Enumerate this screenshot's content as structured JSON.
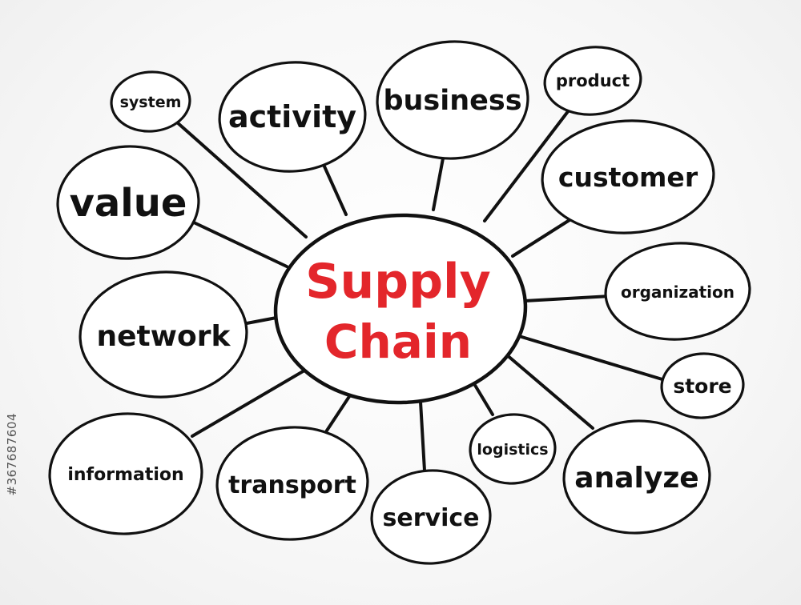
{
  "diagram": {
    "center": {
      "line1": "Supply",
      "line2": "Chain",
      "color": "#e3262b"
    },
    "nodes": [
      {
        "id": "system",
        "label": "system"
      },
      {
        "id": "activity",
        "label": "activity"
      },
      {
        "id": "business",
        "label": "business"
      },
      {
        "id": "product",
        "label": "product"
      },
      {
        "id": "customer",
        "label": "customer"
      },
      {
        "id": "value",
        "label": "value"
      },
      {
        "id": "organization",
        "label": "organization"
      },
      {
        "id": "network",
        "label": "network"
      },
      {
        "id": "store",
        "label": "store"
      },
      {
        "id": "logistics",
        "label": "logistics"
      },
      {
        "id": "analyze",
        "label": "analyze"
      },
      {
        "id": "information",
        "label": "information"
      },
      {
        "id": "transport",
        "label": "transport"
      },
      {
        "id": "service",
        "label": "service"
      }
    ]
  },
  "stock_id": "#367687604"
}
